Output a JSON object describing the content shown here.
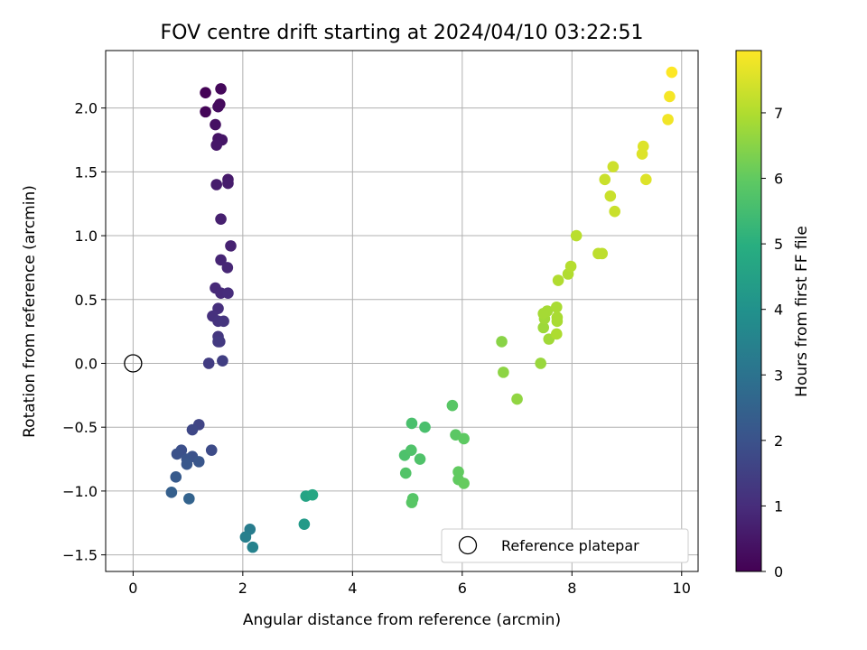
{
  "chart_data": {
    "type": "scatter",
    "title": "FOV centre drift starting at 2024/04/10 03:22:51",
    "xlabel": "Angular distance from reference (arcmin)",
    "ylabel": "Rotation from reference (arcmin)",
    "xlim": [
      -0.5,
      10.3
    ],
    "ylim": [
      -1.63,
      2.45
    ],
    "xticks": [
      0,
      2,
      4,
      6,
      8,
      10
    ],
    "xtick_labels": [
      "0",
      "2",
      "4",
      "6",
      "8",
      "10"
    ],
    "yticks": [
      -1.5,
      -1.0,
      -0.5,
      0.0,
      0.5,
      1.0,
      1.5,
      2.0
    ],
    "ytick_labels": [
      "−1.5",
      "−1.0",
      "−0.5",
      "0.0",
      "0.5",
      "1.0",
      "1.5",
      "2.0"
    ],
    "grid": true,
    "colorbar": {
      "label": "Hours from first FF file",
      "colormap": "viridis",
      "range": [
        0,
        7.95
      ],
      "ticks": [
        0,
        1,
        2,
        3,
        4,
        5,
        6,
        7
      ],
      "tick_labels": [
        "0",
        "1",
        "2",
        "3",
        "4",
        "5",
        "6",
        "7"
      ]
    },
    "reference": {
      "name": "Reference platepar",
      "x": 0,
      "y": 0
    },
    "legend_position": "lower right",
    "points": [
      {
        "x": 1.32,
        "y": 2.12,
        "c": 0.05
      },
      {
        "x": 1.32,
        "y": 1.97,
        "c": 0.1
      },
      {
        "x": 1.6,
        "y": 2.15,
        "c": 0.15
      },
      {
        "x": 1.58,
        "y": 2.03,
        "c": 0.2
      },
      {
        "x": 1.55,
        "y": 2.01,
        "c": 0.25
      },
      {
        "x": 1.5,
        "y": 1.87,
        "c": 0.35
      },
      {
        "x": 1.55,
        "y": 1.76,
        "c": 0.4
      },
      {
        "x": 1.62,
        "y": 1.75,
        "c": 0.45
      },
      {
        "x": 1.52,
        "y": 1.71,
        "c": 0.5
      },
      {
        "x": 1.73,
        "y": 1.44,
        "c": 0.55
      },
      {
        "x": 1.73,
        "y": 1.41,
        "c": 0.6
      },
      {
        "x": 1.52,
        "y": 1.4,
        "c": 0.62
      },
      {
        "x": 1.6,
        "y": 1.13,
        "c": 0.7
      },
      {
        "x": 1.78,
        "y": 0.92,
        "c": 0.75
      },
      {
        "x": 1.6,
        "y": 0.81,
        "c": 0.82
      },
      {
        "x": 1.72,
        "y": 0.75,
        "c": 0.85
      },
      {
        "x": 1.5,
        "y": 0.59,
        "c": 0.92
      },
      {
        "x": 1.6,
        "y": 0.55,
        "c": 0.95
      },
      {
        "x": 1.73,
        "y": 0.55,
        "c": 1.0
      },
      {
        "x": 1.55,
        "y": 0.43,
        "c": 1.05
      },
      {
        "x": 1.45,
        "y": 0.37,
        "c": 1.1
      },
      {
        "x": 1.55,
        "y": 0.33,
        "c": 1.15
      },
      {
        "x": 1.65,
        "y": 0.33,
        "c": 1.2
      },
      {
        "x": 1.55,
        "y": 0.21,
        "c": 1.25
      },
      {
        "x": 1.58,
        "y": 0.17,
        "c": 1.3
      },
      {
        "x": 1.55,
        "y": 0.17,
        "c": 1.35
      },
      {
        "x": 1.38,
        "y": 0.0,
        "c": 1.4
      },
      {
        "x": 1.63,
        "y": 0.02,
        "c": 1.45
      },
      {
        "x": 1.2,
        "y": -0.48,
        "c": 1.6
      },
      {
        "x": 1.08,
        "y": -0.52,
        "c": 1.7
      },
      {
        "x": 1.43,
        "y": -0.68,
        "c": 1.8
      },
      {
        "x": 0.88,
        "y": -0.68,
        "c": 1.9
      },
      {
        "x": 0.8,
        "y": -0.71,
        "c": 1.95
      },
      {
        "x": 1.08,
        "y": -0.73,
        "c": 2.0
      },
      {
        "x": 0.98,
        "y": -0.75,
        "c": 2.05
      },
      {
        "x": 1.2,
        "y": -0.77,
        "c": 2.1
      },
      {
        "x": 0.98,
        "y": -0.79,
        "c": 2.15
      },
      {
        "x": 0.78,
        "y": -0.89,
        "c": 2.25
      },
      {
        "x": 0.7,
        "y": -1.01,
        "c": 2.4
      },
      {
        "x": 1.02,
        "y": -1.06,
        "c": 2.5
      },
      {
        "x": 2.13,
        "y": -1.3,
        "c": 3.3
      },
      {
        "x": 2.05,
        "y": -1.36,
        "c": 3.4
      },
      {
        "x": 2.18,
        "y": -1.44,
        "c": 3.5
      },
      {
        "x": 3.12,
        "y": -1.26,
        "c": 4.3
      },
      {
        "x": 3.15,
        "y": -1.04,
        "c": 4.6
      },
      {
        "x": 3.27,
        "y": -1.03,
        "c": 4.7
      },
      {
        "x": 5.08,
        "y": -0.47,
        "c": 5.6
      },
      {
        "x": 5.32,
        "y": -0.5,
        "c": 5.6
      },
      {
        "x": 4.95,
        "y": -0.72,
        "c": 5.65
      },
      {
        "x": 5.07,
        "y": -0.68,
        "c": 5.7
      },
      {
        "x": 5.23,
        "y": -0.75,
        "c": 5.7
      },
      {
        "x": 4.97,
        "y": -0.86,
        "c": 5.75
      },
      {
        "x": 5.1,
        "y": -1.06,
        "c": 5.8
      },
      {
        "x": 5.08,
        "y": -1.09,
        "c": 5.85
      },
      {
        "x": 5.82,
        "y": -0.33,
        "c": 5.85
      },
      {
        "x": 5.88,
        "y": -0.56,
        "c": 5.9
      },
      {
        "x": 6.03,
        "y": -0.59,
        "c": 5.95
      },
      {
        "x": 5.93,
        "y": -0.85,
        "c": 6.0
      },
      {
        "x": 5.93,
        "y": -0.91,
        "c": 6.0
      },
      {
        "x": 6.03,
        "y": -0.94,
        "c": 6.05
      },
      {
        "x": 6.72,
        "y": 0.17,
        "c": 6.5
      },
      {
        "x": 6.75,
        "y": -0.07,
        "c": 6.55
      },
      {
        "x": 7.0,
        "y": -0.28,
        "c": 6.6
      },
      {
        "x": 7.43,
        "y": 0.0,
        "c": 6.7
      },
      {
        "x": 7.48,
        "y": 0.28,
        "c": 6.75
      },
      {
        "x": 7.58,
        "y": 0.19,
        "c": 6.8
      },
      {
        "x": 7.5,
        "y": 0.35,
        "c": 6.8
      },
      {
        "x": 7.55,
        "y": 0.41,
        "c": 6.85
      },
      {
        "x": 7.48,
        "y": 0.39,
        "c": 6.85
      },
      {
        "x": 7.72,
        "y": 0.44,
        "c": 6.9
      },
      {
        "x": 7.73,
        "y": 0.36,
        "c": 6.9
      },
      {
        "x": 7.73,
        "y": 0.33,
        "c": 6.9
      },
      {
        "x": 7.72,
        "y": 0.23,
        "c": 6.95
      },
      {
        "x": 7.75,
        "y": 0.65,
        "c": 7.0
      },
      {
        "x": 7.93,
        "y": 0.7,
        "c": 7.0
      },
      {
        "x": 7.98,
        "y": 0.76,
        "c": 7.05
      },
      {
        "x": 8.08,
        "y": 1.0,
        "c": 7.1
      },
      {
        "x": 8.48,
        "y": 0.86,
        "c": 7.15
      },
      {
        "x": 8.55,
        "y": 0.86,
        "c": 7.15
      },
      {
        "x": 8.6,
        "y": 1.44,
        "c": 7.3
      },
      {
        "x": 8.7,
        "y": 1.31,
        "c": 7.3
      },
      {
        "x": 8.78,
        "y": 1.19,
        "c": 7.3
      },
      {
        "x": 8.75,
        "y": 1.54,
        "c": 7.35
      },
      {
        "x": 9.28,
        "y": 1.64,
        "c": 7.55
      },
      {
        "x": 9.3,
        "y": 1.7,
        "c": 7.55
      },
      {
        "x": 9.35,
        "y": 1.44,
        "c": 7.55
      },
      {
        "x": 9.75,
        "y": 1.91,
        "c": 7.8
      },
      {
        "x": 9.78,
        "y": 2.09,
        "c": 7.85
      },
      {
        "x": 9.82,
        "y": 2.28,
        "c": 7.95
      }
    ]
  }
}
